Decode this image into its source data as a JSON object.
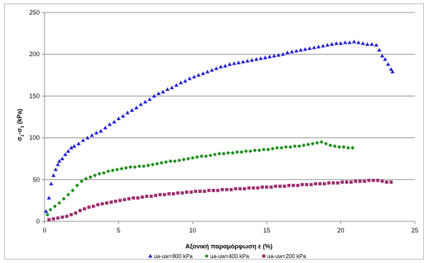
{
  "chart_data": {
    "type": "scatter",
    "title": "",
    "xlabel": "Αξονική παραμόρφωση ε (%)",
    "ylabel_parts": [
      "σ",
      "1",
      "-σ",
      "3",
      " (kPa)"
    ],
    "xlim": [
      0,
      25
    ],
    "ylim": [
      0,
      250
    ],
    "xticks": [
      0,
      5,
      10,
      15,
      20,
      25
    ],
    "yticks": [
      0,
      50,
      100,
      150,
      200,
      250
    ],
    "grid": "horizontal major gridlines",
    "legend_position": "bottom",
    "series": [
      {
        "name": "ua-uw=800 kPa",
        "marker": "triangle",
        "color": "#1f1fd6",
        "points": [
          [
            0.1,
            12
          ],
          [
            0.3,
            28
          ],
          [
            0.45,
            45
          ],
          [
            0.6,
            55
          ],
          [
            0.75,
            62
          ],
          [
            0.9,
            68
          ],
          [
            1.0,
            72
          ],
          [
            1.2,
            75
          ],
          [
            1.4,
            80
          ],
          [
            1.6,
            84
          ],
          [
            1.8,
            88
          ],
          [
            2.0,
            90
          ],
          [
            2.3,
            93
          ],
          [
            2.6,
            97
          ],
          [
            2.9,
            100
          ],
          [
            3.2,
            103
          ],
          [
            3.5,
            106
          ],
          [
            3.8,
            108
          ],
          [
            4.1,
            112
          ],
          [
            4.4,
            116
          ],
          [
            4.7,
            119
          ],
          [
            5.0,
            123
          ],
          [
            5.3,
            126
          ],
          [
            5.6,
            130
          ],
          [
            5.9,
            133
          ],
          [
            6.2,
            136
          ],
          [
            6.5,
            140
          ],
          [
            6.8,
            143
          ],
          [
            7.1,
            146
          ],
          [
            7.4,
            150
          ],
          [
            7.7,
            153
          ],
          [
            8.0,
            155
          ],
          [
            8.3,
            158
          ],
          [
            8.6,
            160
          ],
          [
            8.9,
            163
          ],
          [
            9.2,
            166
          ],
          [
            9.5,
            168
          ],
          [
            9.8,
            171
          ],
          [
            10.1,
            173
          ],
          [
            10.4,
            175
          ],
          [
            10.7,
            177
          ],
          [
            11.0,
            179
          ],
          [
            11.3,
            181
          ],
          [
            11.6,
            183
          ],
          [
            11.9,
            185
          ],
          [
            12.2,
            186
          ],
          [
            12.5,
            188
          ],
          [
            12.8,
            189
          ],
          [
            13.1,
            190
          ],
          [
            13.4,
            191
          ],
          [
            13.7,
            192
          ],
          [
            14.0,
            193
          ],
          [
            14.3,
            194
          ],
          [
            14.6,
            195
          ],
          [
            14.9,
            196
          ],
          [
            15.2,
            197
          ],
          [
            15.5,
            198
          ],
          [
            15.8,
            199
          ],
          [
            16.1,
            200
          ],
          [
            16.4,
            202
          ],
          [
            16.7,
            203
          ],
          [
            17.0,
            204
          ],
          [
            17.3,
            205
          ],
          [
            17.6,
            206
          ],
          [
            17.9,
            207
          ],
          [
            18.2,
            208
          ],
          [
            18.5,
            209
          ],
          [
            18.8,
            210
          ],
          [
            19.1,
            211
          ],
          [
            19.4,
            212
          ],
          [
            19.7,
            213
          ],
          [
            20.0,
            213
          ],
          [
            20.3,
            214
          ],
          [
            20.6,
            214
          ],
          [
            20.9,
            215
          ],
          [
            21.2,
            214
          ],
          [
            21.5,
            213
          ],
          [
            21.8,
            212
          ],
          [
            22.1,
            212
          ],
          [
            22.4,
            211
          ],
          [
            22.6,
            205
          ],
          [
            22.8,
            198
          ],
          [
            23.0,
            194
          ],
          [
            23.2,
            188
          ],
          [
            23.4,
            182
          ],
          [
            23.5,
            179
          ]
        ]
      },
      {
        "name": "ua-uw=400 kPa",
        "marker": "diamond",
        "color": "#1a8c1a",
        "points": [
          [
            0.2,
            8
          ],
          [
            0.4,
            14
          ],
          [
            0.7,
            18
          ],
          [
            1.0,
            22
          ],
          [
            1.3,
            27
          ],
          [
            1.6,
            32
          ],
          [
            1.9,
            37
          ],
          [
            2.2,
            43
          ],
          [
            2.5,
            48
          ],
          [
            2.8,
            51
          ],
          [
            3.1,
            53
          ],
          [
            3.4,
            55
          ],
          [
            3.7,
            57
          ],
          [
            4.0,
            58
          ],
          [
            4.3,
            60
          ],
          [
            4.6,
            61
          ],
          [
            4.9,
            62
          ],
          [
            5.2,
            63
          ],
          [
            5.5,
            64
          ],
          [
            5.8,
            65
          ],
          [
            6.1,
            65
          ],
          [
            6.4,
            66
          ],
          [
            6.7,
            66
          ],
          [
            7.0,
            67
          ],
          [
            7.3,
            68
          ],
          [
            7.6,
            69
          ],
          [
            7.9,
            70
          ],
          [
            8.2,
            71
          ],
          [
            8.5,
            72
          ],
          [
            8.8,
            72
          ],
          [
            9.1,
            73
          ],
          [
            9.4,
            74
          ],
          [
            9.7,
            75
          ],
          [
            10.0,
            76
          ],
          [
            10.3,
            77
          ],
          [
            10.6,
            78
          ],
          [
            10.9,
            78
          ],
          [
            11.2,
            79
          ],
          [
            11.5,
            80
          ],
          [
            11.8,
            81
          ],
          [
            12.1,
            81
          ],
          [
            12.4,
            82
          ],
          [
            12.7,
            82
          ],
          [
            13.0,
            83
          ],
          [
            13.3,
            83
          ],
          [
            13.6,
            84
          ],
          [
            13.9,
            84
          ],
          [
            14.2,
            85
          ],
          [
            14.5,
            85
          ],
          [
            14.8,
            86
          ],
          [
            15.1,
            86
          ],
          [
            15.4,
            87
          ],
          [
            15.7,
            88
          ],
          [
            16.0,
            88
          ],
          [
            16.3,
            89
          ],
          [
            16.6,
            89
          ],
          [
            16.9,
            90
          ],
          [
            17.2,
            90
          ],
          [
            17.5,
            91
          ],
          [
            17.8,
            92
          ],
          [
            18.1,
            93
          ],
          [
            18.4,
            94
          ],
          [
            18.7,
            95
          ],
          [
            19.0,
            93
          ],
          [
            19.3,
            91
          ],
          [
            19.6,
            90
          ],
          [
            19.9,
            89
          ],
          [
            20.2,
            89
          ],
          [
            20.5,
            88
          ],
          [
            20.8,
            88
          ]
        ]
      },
      {
        "name": "ua-uw=200 kPa",
        "marker": "square",
        "color": "#9b2d6d",
        "points": [
          [
            0.3,
            2
          ],
          [
            0.6,
            3
          ],
          [
            0.9,
            4
          ],
          [
            1.2,
            5
          ],
          [
            1.5,
            6
          ],
          [
            1.8,
            8
          ],
          [
            2.1,
            10
          ],
          [
            2.4,
            13
          ],
          [
            2.7,
            15
          ],
          [
            3.0,
            17
          ],
          [
            3.3,
            18
          ],
          [
            3.6,
            20
          ],
          [
            3.9,
            21
          ],
          [
            4.2,
            22
          ],
          [
            4.5,
            23
          ],
          [
            4.8,
            24
          ],
          [
            5.1,
            25
          ],
          [
            5.4,
            26
          ],
          [
            5.7,
            27
          ],
          [
            6.0,
            28
          ],
          [
            6.3,
            28
          ],
          [
            6.6,
            29
          ],
          [
            6.9,
            30
          ],
          [
            7.2,
            30
          ],
          [
            7.5,
            31
          ],
          [
            7.8,
            32
          ],
          [
            8.1,
            32
          ],
          [
            8.4,
            33
          ],
          [
            8.7,
            33
          ],
          [
            9.0,
            34
          ],
          [
            9.3,
            34
          ],
          [
            9.6,
            35
          ],
          [
            9.9,
            35
          ],
          [
            10.2,
            36
          ],
          [
            10.5,
            36
          ],
          [
            10.8,
            36
          ],
          [
            11.1,
            37
          ],
          [
            11.4,
            37
          ],
          [
            11.7,
            37
          ],
          [
            12.0,
            38
          ],
          [
            12.3,
            38
          ],
          [
            12.6,
            38
          ],
          [
            12.9,
            39
          ],
          [
            13.2,
            39
          ],
          [
            13.5,
            39
          ],
          [
            13.8,
            40
          ],
          [
            14.1,
            40
          ],
          [
            14.4,
            40
          ],
          [
            14.7,
            41
          ],
          [
            15.0,
            41
          ],
          [
            15.3,
            41
          ],
          [
            15.6,
            42
          ],
          [
            15.9,
            42
          ],
          [
            16.2,
            42
          ],
          [
            16.5,
            43
          ],
          [
            16.8,
            43
          ],
          [
            17.1,
            43
          ],
          [
            17.4,
            44
          ],
          [
            17.7,
            44
          ],
          [
            18.0,
            44
          ],
          [
            18.3,
            45
          ],
          [
            18.6,
            45
          ],
          [
            18.9,
            45
          ],
          [
            19.2,
            46
          ],
          [
            19.5,
            46
          ],
          [
            19.8,
            46
          ],
          [
            20.1,
            47
          ],
          [
            20.4,
            47
          ],
          [
            20.7,
            47
          ],
          [
            21.0,
            48
          ],
          [
            21.3,
            48
          ],
          [
            21.6,
            48
          ],
          [
            21.9,
            49
          ],
          [
            22.2,
            49
          ],
          [
            22.5,
            49
          ],
          [
            22.8,
            48
          ],
          [
            23.1,
            47
          ],
          [
            23.4,
            47
          ]
        ]
      }
    ]
  }
}
